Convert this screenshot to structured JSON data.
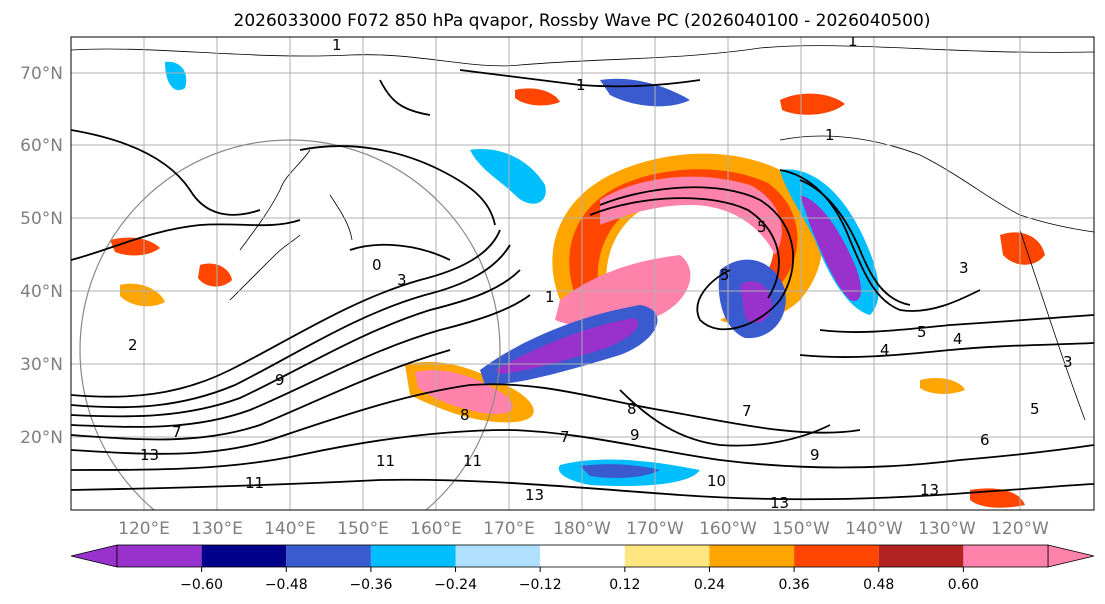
{
  "title": "2026033000 F072 850 hPa qvapor, Rossby Wave PC (2026040100 - 2026040500)",
  "map": {
    "lat_ticks": [
      "70°N",
      "60°N",
      "50°N",
      "40°N",
      "30°N",
      "20°N"
    ],
    "lon_ticks": [
      "120°E",
      "130°E",
      "140°E",
      "150°E",
      "160°E",
      "170°E",
      "180°W",
      "170°W",
      "160°W",
      "150°W",
      "140°W",
      "130°W",
      "120°W"
    ],
    "lat_range": [
      10,
      75
    ],
    "lon_range": [
      110,
      250
    ]
  },
  "colorbar": {
    "colors": [
      "#9932cc",
      "#00008b",
      "#3a5bcf",
      "#00bfff",
      "#b0e0ff",
      "#ffffff",
      "#ffe680",
      "#ffa500",
      "#ff4500",
      "#b22222",
      "#ff82ab"
    ],
    "tick_labels": [
      "−0.60",
      "−0.48",
      "−0.36",
      "−0.24",
      "−0.12",
      "0.12",
      "0.24",
      "0.36",
      "0.48",
      "0.60"
    ]
  },
  "contour_labels": [
    "1",
    "1",
    "1",
    "1",
    "1",
    "3",
    "3",
    "4",
    "5",
    "5",
    "5",
    "5",
    "6",
    "7",
    "7",
    "8",
    "8",
    "9",
    "9",
    "10",
    "11",
    "11",
    "13",
    "13",
    "13",
    "0",
    "2",
    "3",
    "4",
    "7",
    "9",
    "11",
    "13"
  ]
}
